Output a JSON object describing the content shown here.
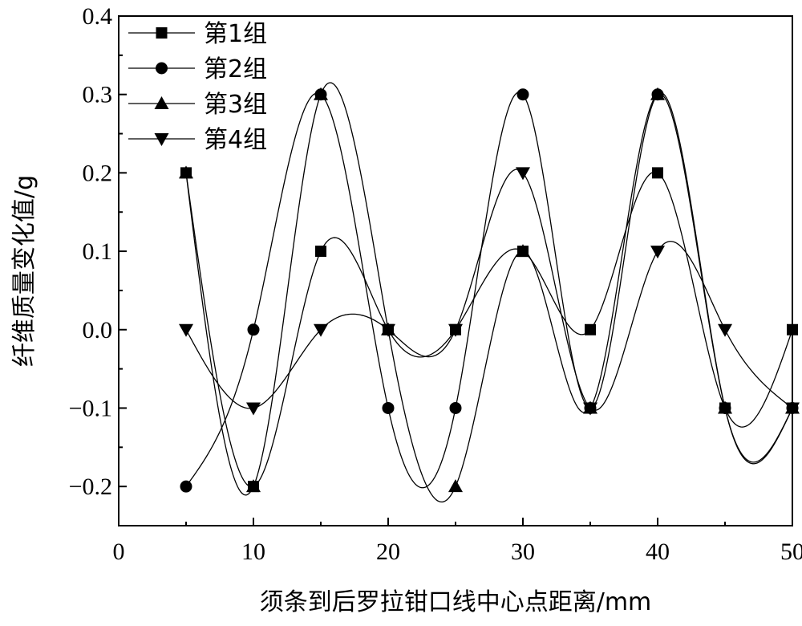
{
  "chart_data": {
    "type": "line",
    "title": "",
    "xlabel": "须条到后罗拉钳口线中心点距离/mm",
    "ylabel": "纤维质量变化值/g",
    "xlim": [
      0,
      50
    ],
    "ylim": [
      -0.25,
      0.4
    ],
    "x_ticks": [
      0,
      10,
      20,
      30,
      40,
      50
    ],
    "x_tick_labels": [
      "0",
      "10",
      "20",
      "30",
      "40",
      "50"
    ],
    "y_ticks": [
      -0.2,
      -0.1,
      0.0,
      0.1,
      0.2,
      0.3,
      0.4
    ],
    "y_tick_labels": [
      "−0.2",
      "−0.1",
      "0.0",
      "0.1",
      "0.2",
      "0.3",
      "0.4"
    ],
    "grid": false,
    "legend_position": "top-left",
    "smooth": true,
    "x": [
      5,
      10,
      15,
      20,
      25,
      30,
      35,
      40,
      45,
      50
    ],
    "series": [
      {
        "name": "第1组",
        "marker": "square",
        "values": [
          0.2,
          -0.2,
          0.1,
          0.0,
          0.0,
          0.1,
          0.0,
          0.2,
          -0.1,
          0.0
        ]
      },
      {
        "name": "第2组",
        "marker": "circle",
        "values": [
          -0.2,
          0.0,
          0.3,
          -0.1,
          -0.1,
          0.3,
          -0.1,
          0.3,
          -0.1,
          -0.1
        ]
      },
      {
        "name": "第3组",
        "marker": "triangle-up",
        "values": [
          0.2,
          -0.2,
          0.3,
          0.0,
          -0.2,
          0.1,
          -0.1,
          0.3,
          -0.1,
          -0.1
        ]
      },
      {
        "name": "第4组",
        "marker": "triangle-down",
        "values": [
          0.0,
          -0.1,
          0.0,
          0.0,
          0.0,
          0.2,
          -0.1,
          0.1,
          0.0,
          -0.1
        ]
      }
    ]
  }
}
